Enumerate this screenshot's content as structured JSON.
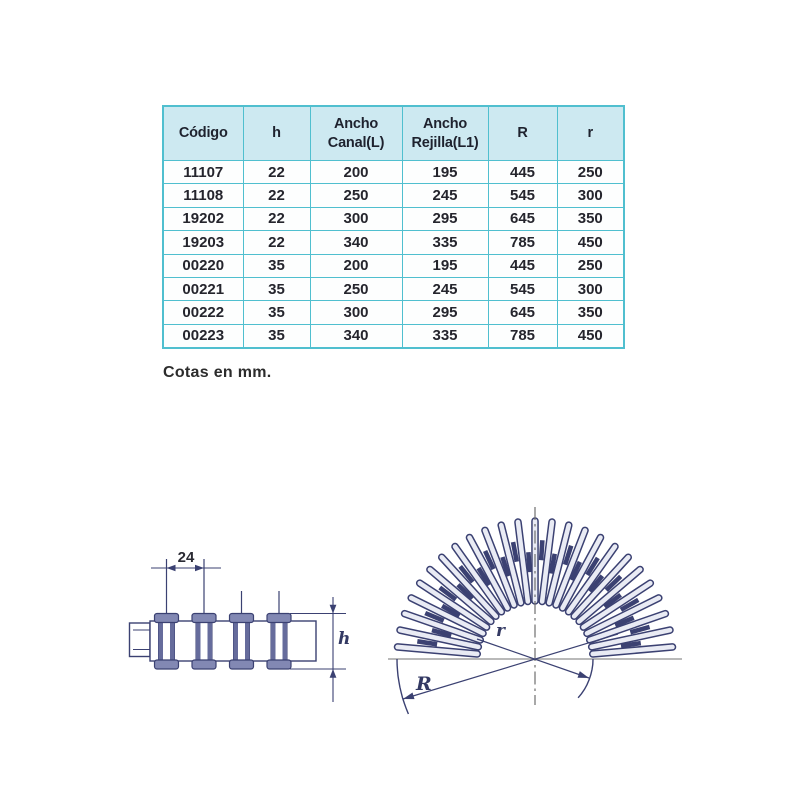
{
  "table": {
    "headers": [
      "Código",
      "h",
      "Ancho Canal(L)",
      "Ancho Rejilla(L1)",
      "R",
      "r"
    ],
    "rows": [
      [
        "11107",
        "22",
        "200",
        "195",
        "445",
        "250"
      ],
      [
        "11108",
        "22",
        "250",
        "245",
        "545",
        "300"
      ],
      [
        "19202",
        "22",
        "300",
        "295",
        "645",
        "350"
      ],
      [
        "19203",
        "22",
        "340",
        "335",
        "785",
        "450"
      ],
      [
        "00220",
        "35",
        "200",
        "195",
        "445",
        "250"
      ],
      [
        "00221",
        "35",
        "250",
        "245",
        "545",
        "300"
      ],
      [
        "00222",
        "35",
        "300",
        "295",
        "645",
        "350"
      ],
      [
        "00223",
        "35",
        "340",
        "335",
        "785",
        "450"
      ]
    ]
  },
  "note": {
    "text": "Cotas en mm."
  },
  "diagrams": {
    "profile": {
      "pitch_label": "24",
      "height_label": "h"
    },
    "fan": {
      "outer_radius_label": "R",
      "inner_radius_label": "r"
    }
  },
  "colors": {
    "table_border": "#50bfcf",
    "table_header_bg": "#cde9f1",
    "table_text": "#25252d",
    "drawing_line": "#3b4172",
    "axis_line": "#8f8f8f"
  }
}
